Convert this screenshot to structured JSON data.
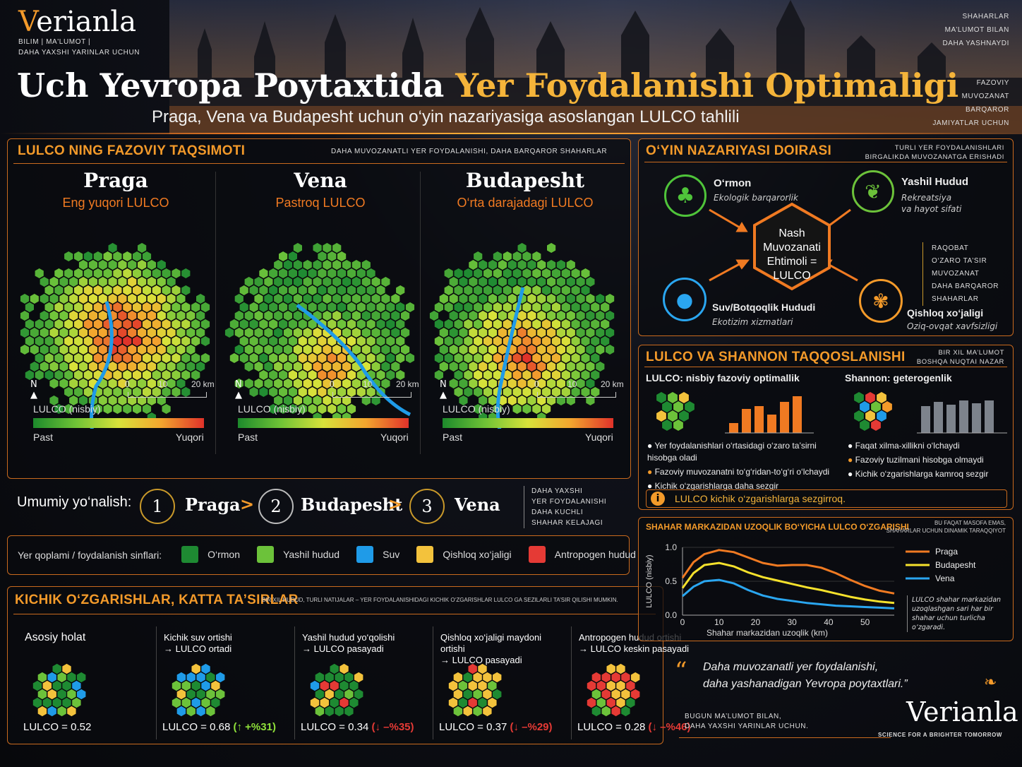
{
  "brand": {
    "name": "Verianla",
    "tag1": "BILIM",
    "tag2": "MA'LUMOT",
    "tag3": "DAHA YAXSHI YARINLAR UCHUN"
  },
  "header": {
    "title_a": "Uch Yevropa Poytaxtida",
    "title_b": "Yer Foydalanishi Optimaligi",
    "subtitle": "Praga, Vena va Budapesht uchun o‘yin nazariyasiga asoslangan LULCO tahlili"
  },
  "corner": {
    "l1": "SHAHARLAR",
    "l2": "MA’LUMOT BILAN",
    "l3": "DAHA YASHNAYDI",
    "l4": "FAZOVIY",
    "l5": "MUVOZANAT",
    "l6": "BARQAROR",
    "l7": "JAMIYATLAR UCHUN"
  },
  "spatial": {
    "title": "LULCO NING FAZOVIY TAQSIMOTI",
    "note": "DAHA MUVOZANATLI YER FOYDALANISHI, DAHA BARQAROR SHAHARLAR",
    "cities": [
      {
        "name": "Praga",
        "sub": "Eng yuqori LULCO",
        "north": "N",
        "s0": "0",
        "s1": "10",
        "s2": "20 km",
        "legend": "LULCO (nisbiy)",
        "low": "Past",
        "high": "Yuqori"
      },
      {
        "name": "Vena",
        "sub": "Pastroq LULCO",
        "north": "N",
        "s0": "0",
        "s1": "10",
        "s2": "20 km",
        "legend": "LULCO (nisbiy)",
        "low": "Past",
        "high": "Yuqori"
      },
      {
        "name": "Budapesht",
        "sub": "O‘rta darajadagi LULCO",
        "north": "N",
        "s0": "0",
        "s1": "10",
        "s2": "20 km",
        "legend": "LULCO (nisbiy)",
        "low": "Past",
        "high": "Yuqori"
      }
    ]
  },
  "ranking": {
    "label": "Umumiy yo‘nalish:",
    "r1": "1",
    "c1": "Praga",
    "r2": "2",
    "c2": "Budapesht",
    "r3": "3",
    "c3": "Vena",
    "gt": ">",
    "note1": "DAHA YAXSHI",
    "note2": "YER FOYDALANISHI",
    "note3": "DAHA KUCHLI",
    "note4": "SHAHAR KELAJAGI"
  },
  "classes": {
    "label": "Yer qoplami / foydalanish sinflari:",
    "items": [
      {
        "name": "O‘rmon",
        "color": "#1e8a32"
      },
      {
        "name": "Yashil hudud",
        "color": "#6cc23a"
      },
      {
        "name": "Suv",
        "color": "#1f9be8"
      },
      {
        "name": "Qishloq xo‘jaligi",
        "color": "#f3c23c"
      },
      {
        "name": "Antropogen hudud",
        "color": "#e53a35"
      }
    ]
  },
  "changes": {
    "title": "KICHIK O‘ZGARISHLAR, KATTA TA’SIRLAR",
    "note": "BIR XIL HUDUD, TURLI NATIJALAR – YER FOYDALANISHIDAGI KICHIK O‘ZGARISHLAR LULCO GA SEZILARLI TA’SIR QILISHI MUMKIN.",
    "cases": [
      {
        "t1": "Asosiy holat",
        "t2": "",
        "val": "LULCO = 0.52",
        "delta": "",
        "dir": ""
      },
      {
        "t1": "Kichik suv ortishi",
        "t2": "→ LULCO ortadi",
        "val": "LULCO = 0.68",
        "delta": "+%31",
        "dir": "↑"
      },
      {
        "t1": "Yashil hudud yo‘qolishi",
        "t2": "→ LULCO pasayadi",
        "val": "LULCO = 0.34",
        "delta": "–%35",
        "dir": "↓"
      },
      {
        "t1": "Qishloq xo‘jaligi maydoni ortishi",
        "t2": "→ LULCO pasayadi",
        "val": "LULCO = 0.37",
        "delta": "–%29",
        "dir": "↓"
      },
      {
        "t1": "Antropogen hudud ortishi",
        "t2": "→ LULCO keskin pasayadi",
        "val": "LULCO = 0.28",
        "delta": "–%46",
        "dir": "↓"
      }
    ]
  },
  "game": {
    "title": "O‘YIN NAZARIYASI DOIRASI",
    "note1": "TURLI YER FOYDALANISHLARI",
    "note2": "BIRGALIKDA MUVOZANATGA ERISHADI",
    "center": [
      "Nash",
      "Muvozanati",
      "Ehtimoli =",
      "LULCO"
    ],
    "n1": {
      "t": "O‘rmon",
      "s": "Ekologik barqarorlik"
    },
    "n2": {
      "t": "Yashil Hudud",
      "s1": "Rekreatsiya",
      "s2": "va hayot sifati"
    },
    "n3": {
      "t": "Suv/Botqoqlik Hududi",
      "s": "Ekotizim xizmatlari"
    },
    "n4": {
      "t": "Qishloq xo‘jaligi",
      "s": "Oziq-ovqat xavfsizligi"
    },
    "side": [
      "RAQOBAT",
      "O‘ZARO TA’SIR",
      "MUVOZANAT",
      "DAHA BARQAROR",
      "SHAHARLAR"
    ]
  },
  "compare": {
    "title": "LULCO VA SHANNON TAQQOSLANISHI",
    "note1": "BIR XIL MA’LUMOT",
    "note2": "BOSHQA NUQTAI NAZAR",
    "l_title": "LULCO: nisbiy fazoviy optimallik",
    "r_title": "Shannon: geterogenlik",
    "l_b": [
      "Yer foydalanishlari o‘rtasidagi o‘zaro ta’sirni hisobga oladi",
      "Fazoviy muvozanatni to‘g‘ridan-to‘g‘ri o‘lchaydi",
      "Kichik o‘zgarishlarga daha sezgir"
    ],
    "r_b": [
      "Faqat xilma-xillikni o‘lchaydi",
      "Fazoviy tuzilmani hisobga olmaydi",
      "Kichik o‘zgarishlarga kamroq sezgir"
    ],
    "info": "LULCO kichik o‘zgarishlarga sezgirroq."
  },
  "chart_data": {
    "type": "line",
    "title": "SHAHAR MARKAZIDAN UZOQLIK BO‘YICHA LULCO O‘ZGARISHI",
    "note1": "BU FAQAT MASOFA EMAS,",
    "note2": "SHAHARLAR UCHUN DINAMIK TARAQQIYOT",
    "xlabel": "Shahar markazidan uzoqlik (km)",
    "ylabel": "LULCO (nisbiy)",
    "xlim": [
      0,
      58
    ],
    "ylim": [
      0,
      1.0
    ],
    "xticks": [
      "0",
      "10",
      "20",
      "30",
      "40",
      "50"
    ],
    "yticks": [
      "0.0",
      "0.5",
      "1.0"
    ],
    "x": [
      0,
      3,
      6,
      10,
      14,
      18,
      22,
      26,
      30,
      34,
      38,
      42,
      46,
      50,
      54,
      58
    ],
    "series": [
      {
        "name": "Praga",
        "color": "#f07a22",
        "values": [
          0.55,
          0.78,
          0.9,
          0.96,
          0.93,
          0.85,
          0.77,
          0.73,
          0.74,
          0.74,
          0.7,
          0.62,
          0.52,
          0.43,
          0.36,
          0.32
        ]
      },
      {
        "name": "Budapesht",
        "color": "#f5e12c",
        "values": [
          0.4,
          0.62,
          0.74,
          0.77,
          0.72,
          0.63,
          0.56,
          0.51,
          0.46,
          0.41,
          0.37,
          0.32,
          0.27,
          0.23,
          0.2,
          0.18
        ]
      },
      {
        "name": "Vena",
        "color": "#2aa6f0",
        "values": [
          0.28,
          0.42,
          0.5,
          0.52,
          0.47,
          0.37,
          0.29,
          0.24,
          0.21,
          0.18,
          0.16,
          0.14,
          0.13,
          0.12,
          0.11,
          0.1
        ]
      }
    ],
    "legend": "top-right",
    "annot": "LULCO shahar markazidan uzoqlashgan sari har bir shahar uchun turlicha o‘zgaradi."
  },
  "quote": {
    "mark": "“",
    "l1": "Daha muvozanatli yer foydalanishi,",
    "l2": "daha yashanadigan Yevropa poytaxtlari.”",
    "f1": "BUGUN  MA’LUMOT BILAN,",
    "f2": "DAHA YAXSHI YARINLAR UCHUN.",
    "brand": "Verianla",
    "tag": "SCIENCE FOR A BRIGHTER TOMORROW"
  }
}
